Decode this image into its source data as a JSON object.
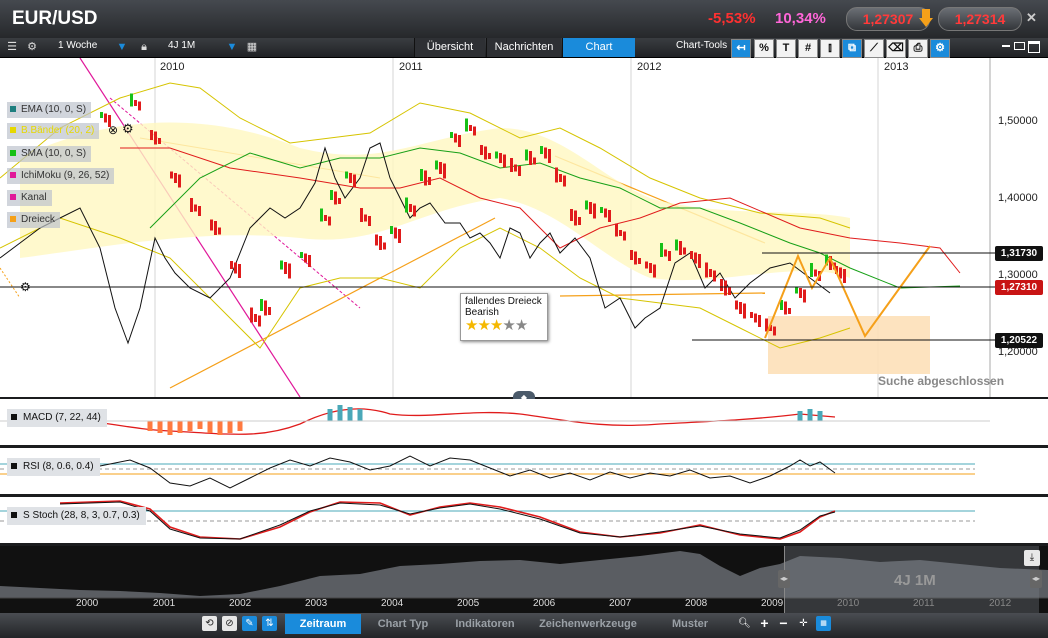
{
  "header": {
    "title": "EUR/USD",
    "change_pct_1": "-5,53%",
    "change_pct_2": "10,34%",
    "bid": "1,27307",
    "ask": "1,27314"
  },
  "toolbar": {
    "interval": "1 Woche",
    "range": "4J 1M",
    "tabs": [
      "Übersicht",
      "Nachrichten",
      "Chart"
    ],
    "chart_tools_label": "Chart-Tools"
  },
  "chart": {
    "years": [
      "2010",
      "2011",
      "2012",
      "2013"
    ],
    "y_ticks": [
      "1,50000",
      "1,40000",
      "1,30000",
      "1,20000"
    ],
    "levels": {
      "upper": "1,31730",
      "current": "1,27310",
      "lower": "1,20522"
    },
    "legend": [
      {
        "label": "EMA (10, 0, S)",
        "color": "#1e7f7f"
      },
      {
        "label": "B.Bänder (20, 2)",
        "color": "#e6d800"
      },
      {
        "label": "SMA (10, 0, S)",
        "color": "#16c016"
      },
      {
        "label": "IchiMoku (9, 26, 52)",
        "color": "#e0189a"
      },
      {
        "label": "Kanal",
        "color": "#e0189a"
      },
      {
        "label": "Dreieck",
        "color": "#f5a01a"
      }
    ],
    "pattern": {
      "name": "fallendes Dreieck",
      "bias": "Bearish",
      "stars": "★★★★★",
      "rating": 3
    },
    "search_status": "Suche abgeschlossen"
  },
  "indicators": [
    "MACD (7, 22, 44)",
    "RSI (8, 0.6, 0.4)",
    "S Stoch (28, 8, 3, 0.7, 0.3)"
  ],
  "overview": {
    "years": [
      "2000",
      "2001",
      "2002",
      "2003",
      "2004",
      "2005",
      "2006",
      "2007",
      "2008",
      "2009",
      "2010",
      "2011",
      "2012"
    ],
    "range": "4J 1M"
  },
  "bottom_tabs": [
    "Zeitraum",
    "Chart Typ",
    "Indikatoren",
    "Zeichenwerkzeuge",
    "Muster"
  ],
  "colors": {
    "accent": "#1a8bdb",
    "up": "#17c017",
    "down": "#e01c1c"
  }
}
